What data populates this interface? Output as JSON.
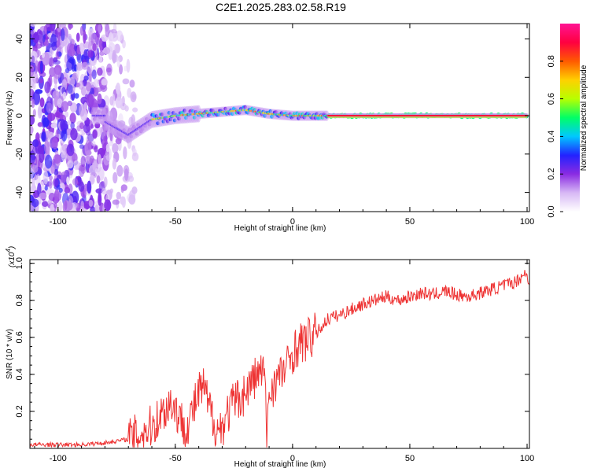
{
  "title": "C2E1.2025.283.02.58.R19",
  "chart_data": [
    {
      "type": "heatmap",
      "xlabel": "Height of straight line (km)",
      "ylabel": "Frequency (Hz)",
      "xlim": [
        -112,
        101
      ],
      "ylim": [
        -50,
        48
      ],
      "xticks": [
        -100,
        -50,
        0,
        50,
        100
      ],
      "yticks": [
        -40,
        -20,
        0,
        20,
        40
      ],
      "xtick_labels": [
        "-100",
        "-50",
        "0",
        "50",
        "100"
      ],
      "ytick_labels": [
        "-40",
        "-20",
        "0",
        "20",
        "40"
      ],
      "colorbar": {
        "label": "Normalized spectral amplitude",
        "range": [
          0,
          1
        ],
        "ticks": [
          0.0,
          0.2,
          0.4,
          0.6,
          0.8
        ],
        "tick_labels": [
          "0.0",
          "0.2",
          "0.4",
          "0.6",
          "0.8"
        ],
        "colormap": [
          "#ffffff",
          "#d7b8f5",
          "#8a2be2",
          "#2222ff",
          "#00c8ff",
          "#00ff66",
          "#b8ff00",
          "#ffd000",
          "#ff5a00",
          "#ff0040",
          "#ff1493"
        ]
      },
      "ridge": {
        "description_points_x": [
          -80,
          -70,
          -60,
          -50,
          -40,
          -30,
          -20,
          -10,
          0,
          10,
          20,
          50,
          100
        ],
        "description_points_y": [
          -3,
          -10,
          -2,
          0,
          1,
          2,
          3,
          1,
          0,
          0,
          0,
          0,
          0
        ]
      }
    },
    {
      "type": "line",
      "xlabel": "Height of straight line (km)",
      "ylabel": "SNR (10 * v/v)",
      "ylabel_multiplier": "(x10",
      "ylabel_multiplier_exp": "4",
      "ylabel_multiplier_close": ")",
      "xlim": [
        -112,
        101
      ],
      "ylim": [
        0,
        1.02
      ],
      "xticks": [
        -100,
        -50,
        0,
        50,
        100
      ],
      "yticks": [
        0.2,
        0.4,
        0.6,
        0.8,
        1.0
      ],
      "xtick_labels": [
        "-100",
        "-50",
        "0",
        "50",
        "100"
      ],
      "ytick_labels": [
        "0.2",
        "0.4",
        "0.6",
        "0.8",
        "1.0"
      ],
      "color": "#ee3333",
      "series": [
        {
          "name": "SNR",
          "x": [
            -112,
            -100,
            -90,
            -80,
            -75,
            -70,
            -65,
            -60,
            -55,
            -52,
            -50,
            -48,
            -45,
            -42,
            -40,
            -38,
            -37,
            -35,
            -32,
            -30,
            -28,
            -25,
            -22,
            -20,
            -18,
            -15,
            -12,
            -11,
            -10,
            -8,
            -5,
            -2,
            0,
            2,
            5,
            8,
            10,
            12,
            15,
            20,
            25,
            30,
            35,
            40,
            45,
            50,
            55,
            60,
            65,
            70,
            75,
            80,
            85,
            90,
            95,
            97,
            99,
            101
          ],
          "y": [
            0.02,
            0.02,
            0.02,
            0.03,
            0.04,
            0.05,
            0.08,
            0.12,
            0.2,
            0.25,
            0.22,
            0.15,
            0.12,
            0.22,
            0.3,
            0.33,
            0.28,
            0.2,
            0.1,
            0.12,
            0.18,
            0.25,
            0.28,
            0.3,
            0.35,
            0.4,
            0.42,
            0.05,
            0.3,
            0.35,
            0.4,
            0.45,
            0.52,
            0.55,
            0.58,
            0.6,
            0.62,
            0.65,
            0.7,
            0.72,
            0.75,
            0.78,
            0.8,
            0.82,
            0.8,
            0.82,
            0.84,
            0.83,
            0.85,
            0.83,
            0.82,
            0.84,
            0.86,
            0.88,
            0.9,
            0.92,
            0.95,
            0.9
          ]
        }
      ]
    }
  ]
}
